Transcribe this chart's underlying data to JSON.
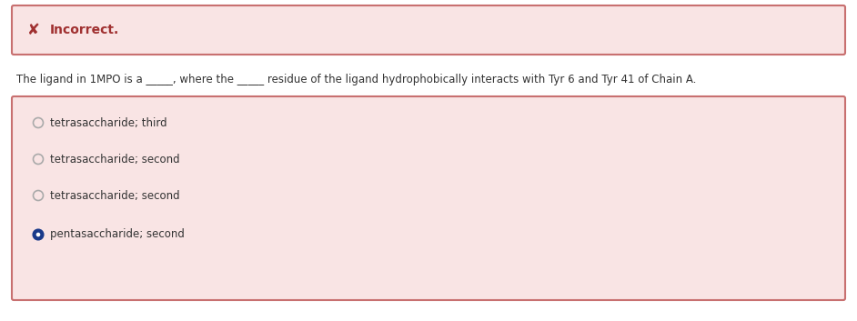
{
  "bg_color": "#ffffff",
  "incorrect_box_bg": "#f9e4e4",
  "incorrect_box_border": "#c87070",
  "incorrect_label": "Incorrect.",
  "incorrect_x_color": "#a03030",
  "question_text": "The ligand in 1MPO is a _____, where the _____ residue of the ligand hydrophobically interacts with Tyr 6 and Tyr 41 of Chain A.",
  "question_color": "#333333",
  "options_box_bg": "#f9e4e4",
  "options_box_border": "#c87070",
  "options": [
    {
      "text": "tetrasaccharide; third",
      "selected": false
    },
    {
      "text": "tetrasaccharide; second",
      "selected": false
    },
    {
      "text": "tetrasaccharide; second",
      "selected": false
    },
    {
      "text": "pentasaccharide; second",
      "selected": true
    }
  ],
  "option_text_color": "#333333",
  "radio_empty_color": "#aaaaaa",
  "radio_selected_fill": "#1a3a8a",
  "radio_selected_border": "#1a3a8a",
  "font_size_incorrect": 10,
  "font_size_question": 8.5,
  "font_size_options": 8.5,
  "fig_width": 9.42,
  "fig_height": 3.53,
  "dpi": 100
}
